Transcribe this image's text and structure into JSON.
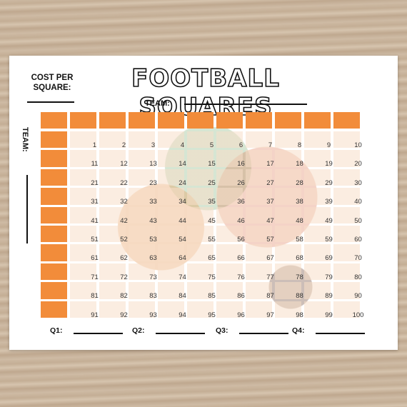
{
  "header": {
    "cost_label": [
      "COST PER",
      "SQUARE:"
    ],
    "title": "FOOTBALL SQUARES",
    "top_team_label": "TEAM:",
    "side_team_label": "TEAM:"
  },
  "grid": {
    "rows": [
      [
        1,
        2,
        3,
        4,
        5,
        6,
        7,
        8,
        9,
        10
      ],
      [
        11,
        12,
        13,
        14,
        15,
        16,
        17,
        18,
        19,
        20
      ],
      [
        21,
        22,
        23,
        24,
        25,
        26,
        27,
        28,
        29,
        30
      ],
      [
        31,
        32,
        33,
        34,
        35,
        36,
        37,
        38,
        39,
        40
      ],
      [
        41,
        42,
        43,
        44,
        45,
        46,
        47,
        48,
        49,
        50
      ],
      [
        51,
        52,
        53,
        54,
        55,
        56,
        57,
        58,
        59,
        60
      ],
      [
        61,
        62,
        63,
        64,
        65,
        66,
        67,
        68,
        69,
        70
      ],
      [
        71,
        72,
        73,
        74,
        75,
        76,
        77,
        78,
        79,
        80
      ],
      [
        81,
        82,
        83,
        84,
        85,
        86,
        87,
        88,
        89,
        90
      ],
      [
        91,
        92,
        93,
        94,
        95,
        96,
        97,
        98,
        99,
        100
      ]
    ]
  },
  "quarters": [
    "Q1:",
    "Q2:",
    "Q3:",
    "Q4:"
  ]
}
